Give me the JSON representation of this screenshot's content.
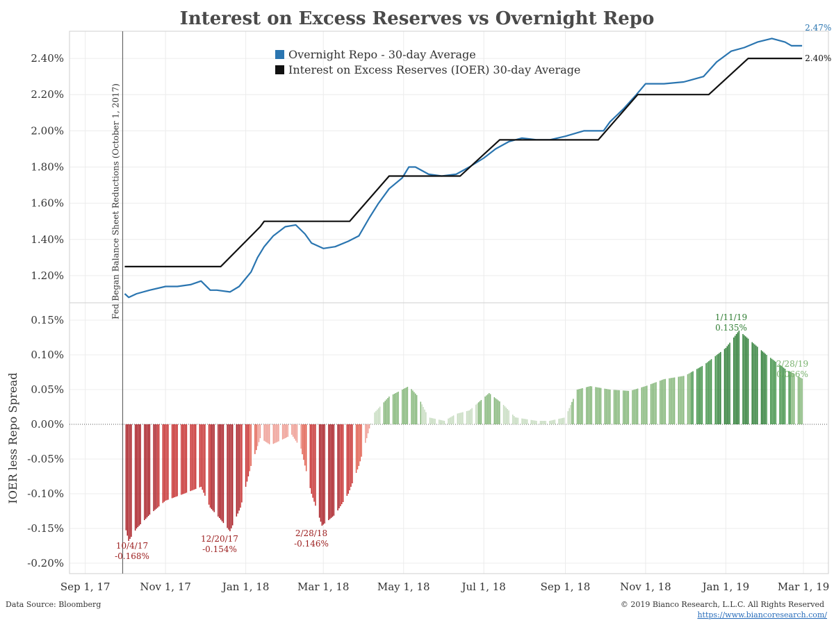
{
  "chart_data": {
    "type": "line+bar",
    "title": "Interest on Excess Reserves vs Overnight Repo",
    "x_tick_labels": [
      "Sep 1, 17",
      "Nov 1, 17",
      "Jan 1, 18",
      "Mar 1, 18",
      "May 1, 18",
      "Jul 1, 18",
      "Sep 1, 18",
      "Nov 1, 18",
      "Jan 1, 19",
      "Mar 1, 19"
    ],
    "x_tick_dates": [
      "2017-09-01",
      "2017-11-01",
      "2018-01-01",
      "2018-03-01",
      "2018-05-01",
      "2018-07-01",
      "2018-09-01",
      "2018-11-01",
      "2019-01-01",
      "2019-03-01"
    ],
    "xlim": [
      "2017-08-20",
      "2019-03-20"
    ],
    "top_panel": {
      "ylim": [
        1.05,
        2.55
      ],
      "y_ticks": [
        1.2,
        1.4,
        1.6,
        1.8,
        2.0,
        2.2,
        2.4
      ],
      "y_tick_labels": [
        "1.20%",
        "1.40%",
        "1.60%",
        "1.80%",
        "2.00%",
        "2.20%",
        "2.40%"
      ],
      "legend_position": "top-center",
      "series": [
        {
          "name": "Overnight Repo - 30-day Average",
          "color": "#2a75b0",
          "points": [
            [
              "2017-10-01",
              1.1
            ],
            [
              "2017-10-04",
              1.08
            ],
            [
              "2017-10-10",
              1.1
            ],
            [
              "2017-10-20",
              1.12
            ],
            [
              "2017-11-01",
              1.14
            ],
            [
              "2017-11-10",
              1.14
            ],
            [
              "2017-11-20",
              1.15
            ],
            [
              "2017-11-28",
              1.17
            ],
            [
              "2017-12-05",
              1.12
            ],
            [
              "2017-12-10",
              1.12
            ],
            [
              "2017-12-20",
              1.11
            ],
            [
              "2017-12-27",
              1.14
            ],
            [
              "2018-01-05",
              1.22
            ],
            [
              "2018-01-10",
              1.3
            ],
            [
              "2018-01-15",
              1.36
            ],
            [
              "2018-01-22",
              1.42
            ],
            [
              "2018-01-31",
              1.47
            ],
            [
              "2018-02-08",
              1.48
            ],
            [
              "2018-02-15",
              1.43
            ],
            [
              "2018-02-20",
              1.38
            ],
            [
              "2018-03-01",
              1.35
            ],
            [
              "2018-03-10",
              1.36
            ],
            [
              "2018-03-20",
              1.39
            ],
            [
              "2018-03-28",
              1.42
            ],
            [
              "2018-04-05",
              1.52
            ],
            [
              "2018-04-12",
              1.6
            ],
            [
              "2018-04-20",
              1.68
            ],
            [
              "2018-04-30",
              1.74
            ],
            [
              "2018-05-05",
              1.8
            ],
            [
              "2018-05-10",
              1.8
            ],
            [
              "2018-05-20",
              1.76
            ],
            [
              "2018-05-30",
              1.75
            ],
            [
              "2018-06-10",
              1.76
            ],
            [
              "2018-06-20",
              1.8
            ],
            [
              "2018-07-01",
              1.85
            ],
            [
              "2018-07-10",
              1.9
            ],
            [
              "2018-07-20",
              1.94
            ],
            [
              "2018-07-30",
              1.96
            ],
            [
              "2018-08-10",
              1.95
            ],
            [
              "2018-08-20",
              1.95
            ],
            [
              "2018-09-01",
              1.97
            ],
            [
              "2018-09-15",
              2.0
            ],
            [
              "2018-09-30",
              2.0
            ],
            [
              "2018-10-05",
              2.05
            ],
            [
              "2018-10-15",
              2.12
            ],
            [
              "2018-10-25",
              2.2
            ],
            [
              "2018-11-01",
              2.26
            ],
            [
              "2018-11-15",
              2.26
            ],
            [
              "2018-11-30",
              2.27
            ],
            [
              "2018-12-05",
              2.28
            ],
            [
              "2018-12-15",
              2.3
            ],
            [
              "2018-12-25",
              2.38
            ],
            [
              "2019-01-05",
              2.44
            ],
            [
              "2019-01-15",
              2.46
            ],
            [
              "2019-01-25",
              2.49
            ],
            [
              "2019-02-05",
              2.51
            ],
            [
              "2019-02-15",
              2.49
            ],
            [
              "2019-02-20",
              2.47
            ],
            [
              "2019-02-28",
              2.47
            ]
          ],
          "end_label": "2.47%"
        },
        {
          "name": "Interest on Excess Reserves (IOER) 30-day Average",
          "color": "#111111",
          "points": [
            [
              "2017-10-01",
              1.25
            ],
            [
              "2017-12-13",
              1.25
            ],
            [
              "2018-01-12",
              1.47
            ],
            [
              "2018-01-15",
              1.5
            ],
            [
              "2018-03-21",
              1.5
            ],
            [
              "2018-04-20",
              1.75
            ],
            [
              "2018-06-13",
              1.75
            ],
            [
              "2018-07-13",
              1.95
            ],
            [
              "2018-09-26",
              1.95
            ],
            [
              "2018-10-26",
              2.2
            ],
            [
              "2018-12-19",
              2.2
            ],
            [
              "2019-01-18",
              2.4
            ],
            [
              "2019-02-28",
              2.4
            ]
          ],
          "end_label": "2.40%"
        }
      ]
    },
    "bottom_panel": {
      "type": "bar",
      "ylabel": "IOER less Repo Spread",
      "ylim": [
        -0.215,
        0.175
      ],
      "y_ticks": [
        -0.2,
        -0.15,
        -0.1,
        -0.05,
        0.0,
        0.05,
        0.1,
        0.15
      ],
      "y_tick_labels": [
        "-0.20%",
        "-0.15%",
        "-0.10%",
        "-0.05%",
        "0.00%",
        "0.05%",
        "0.10%",
        "0.15%"
      ],
      "spread_keypoints": [
        [
          "2017-10-01",
          -0.145
        ],
        [
          "2017-10-04",
          -0.168
        ],
        [
          "2017-10-10",
          -0.15
        ],
        [
          "2017-10-20",
          -0.13
        ],
        [
          "2017-11-01",
          -0.11
        ],
        [
          "2017-11-15",
          -0.1
        ],
        [
          "2017-11-28",
          -0.09
        ],
        [
          "2017-12-05",
          -0.12
        ],
        [
          "2017-12-12",
          -0.135
        ],
        [
          "2017-12-20",
          -0.154
        ],
        [
          "2017-12-28",
          -0.12
        ],
        [
          "2018-01-05",
          -0.06
        ],
        [
          "2018-01-12",
          -0.02
        ],
        [
          "2018-01-20",
          -0.03
        ],
        [
          "2018-01-31",
          -0.02
        ],
        [
          "2018-02-05",
          -0.015
        ],
        [
          "2018-02-12",
          -0.035
        ],
        [
          "2018-02-20",
          -0.1
        ],
        [
          "2018-02-28",
          -0.146
        ],
        [
          "2018-03-10",
          -0.13
        ],
        [
          "2018-03-20",
          -0.1
        ],
        [
          "2018-03-28",
          -0.06
        ],
        [
          "2018-04-03",
          -0.02
        ],
        [
          "2018-04-08",
          0.015
        ],
        [
          "2018-04-20",
          0.04
        ],
        [
          "2018-05-05",
          0.055
        ],
        [
          "2018-05-12",
          0.04
        ],
        [
          "2018-05-20",
          0.01
        ],
        [
          "2018-06-01",
          0.005
        ],
        [
          "2018-06-10",
          0.015
        ],
        [
          "2018-06-20",
          0.02
        ],
        [
          "2018-07-05",
          0.045
        ],
        [
          "2018-07-15",
          0.03
        ],
        [
          "2018-07-25",
          0.01
        ],
        [
          "2018-08-10",
          0.005
        ],
        [
          "2018-08-20",
          0.005
        ],
        [
          "2018-09-01",
          0.01
        ],
        [
          "2018-09-10",
          0.05
        ],
        [
          "2018-09-20",
          0.055
        ],
        [
          "2018-10-05",
          0.05
        ],
        [
          "2018-10-20",
          0.048
        ],
        [
          "2018-11-01",
          0.055
        ],
        [
          "2018-11-15",
          0.065
        ],
        [
          "2018-12-01",
          0.07
        ],
        [
          "2018-12-15",
          0.085
        ],
        [
          "2019-01-01",
          0.11
        ],
        [
          "2019-01-11",
          0.135
        ],
        [
          "2019-01-20",
          0.12
        ],
        [
          "2019-02-01",
          0.1
        ],
        [
          "2019-02-15",
          0.08
        ],
        [
          "2019-02-28",
          0.066
        ]
      ],
      "annotations": [
        {
          "date_label": "10/4/17",
          "value_label": "-0.168%",
          "color": "#9b1c1c"
        },
        {
          "date_label": "12/20/17",
          "value_label": "-0.154%",
          "color": "#9b1c1c"
        },
        {
          "date_label": "2/28/18",
          "value_label": "-0.146%",
          "color": "#9b1c1c"
        },
        {
          "date_label": "1/11/19",
          "value_label": "0.135%",
          "color": "#2f7d32"
        },
        {
          "date_label": "2/28/19",
          "value_label": "0.066%",
          "color": "#7ab36f"
        }
      ]
    },
    "vertical_marker": {
      "date": "2017-10-01",
      "label": "Fed Began Balance Sheet Reductions (October 1, 2017)"
    },
    "footer": {
      "source": "Data Source: Bloomberg",
      "copyright": "© 2019 Bianco Research, L.L.C. All Rights Reserved",
      "link": "https://www.biancoresearch.com/"
    }
  }
}
